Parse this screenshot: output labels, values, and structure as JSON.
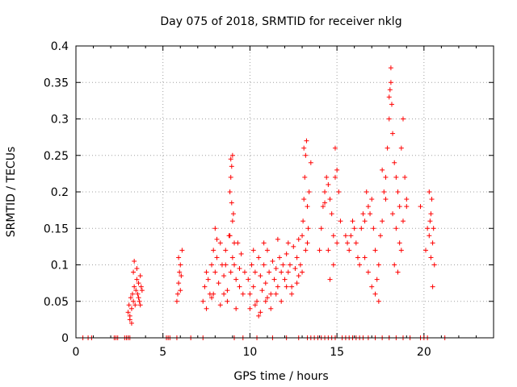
{
  "chart_data": {
    "type": "scatter",
    "title": "Day 075 of 2018, SRMTID for receiver nklg",
    "xlabel": "GPS time / hours",
    "ylabel": "SRMTID / TECUs",
    "xlim": [
      0,
      24
    ],
    "ylim": [
      0,
      0.4
    ],
    "x_ticks": [
      0,
      5,
      10,
      15,
      20
    ],
    "x_tick_labels": [
      "0",
      "5",
      "10",
      "15",
      "20"
    ],
    "y_ticks": [
      0,
      0.05,
      0.1,
      0.15,
      0.2,
      0.25,
      0.3,
      0.35,
      0.4
    ],
    "y_tick_labels": [
      "0",
      "0.05",
      "0.1",
      "0.15",
      "0.2",
      "0.25",
      "0.3",
      "0.35",
      "0.4"
    ],
    "grid": true,
    "marker": "+",
    "color": "#ff0000",
    "series": [
      {
        "name": "SRMTID",
        "points": [
          [
            3.0,
            0.035
          ],
          [
            3.05,
            0.045
          ],
          [
            3.1,
            0.03
          ],
          [
            3.15,
            0.055
          ],
          [
            3.2,
            0.04
          ],
          [
            3.25,
            0.06
          ],
          [
            3.3,
            0.05
          ],
          [
            3.35,
            0.07
          ],
          [
            3.4,
            0.045
          ],
          [
            3.45,
            0.065
          ],
          [
            3.5,
            0.08
          ],
          [
            3.55,
            0.06
          ],
          [
            3.6,
            0.075
          ],
          [
            3.65,
            0.05
          ],
          [
            3.7,
            0.085
          ],
          [
            3.75,
            0.07
          ],
          [
            3.8,
            0.065
          ],
          [
            3.3,
            0.09
          ],
          [
            3.35,
            0.105
          ],
          [
            3.5,
            0.095
          ],
          [
            3.1,
            0.025
          ],
          [
            3.2,
            0.02
          ],
          [
            3.6,
            0.055
          ],
          [
            3.7,
            0.045
          ],
          [
            5.8,
            0.05
          ],
          [
            5.85,
            0.06
          ],
          [
            5.9,
            0.075
          ],
          [
            5.95,
            0.09
          ],
          [
            6.0,
            0.1
          ],
          [
            6.05,
            0.085
          ],
          [
            6.1,
            0.12
          ],
          [
            5.9,
            0.11
          ],
          [
            6.0,
            0.065
          ],
          [
            7.3,
            0.05
          ],
          [
            7.4,
            0.07
          ],
          [
            7.5,
            0.09
          ],
          [
            7.6,
            0.08
          ],
          [
            7.7,
            0.06
          ],
          [
            7.8,
            0.1
          ],
          [
            7.9,
            0.12
          ],
          [
            8.0,
            0.09
          ],
          [
            8.1,
            0.11
          ],
          [
            8.2,
            0.075
          ],
          [
            8.3,
            0.13
          ],
          [
            8.4,
            0.1
          ],
          [
            8.5,
            0.085
          ],
          [
            8.6,
            0.12
          ],
          [
            8.7,
            0.065
          ],
          [
            8.8,
            0.14
          ],
          [
            8.9,
            0.09
          ],
          [
            9.0,
            0.11
          ],
          [
            9.1,
            0.1
          ],
          [
            9.2,
            0.08
          ],
          [
            9.3,
            0.13
          ],
          [
            9.4,
            0.07
          ],
          [
            9.5,
            0.115
          ],
          [
            9.6,
            0.06
          ],
          [
            9.7,
            0.09
          ],
          [
            7.5,
            0.04
          ],
          [
            7.8,
            0.055
          ],
          [
            8.0,
            0.15
          ],
          [
            8.3,
            0.045
          ],
          [
            8.5,
            0.06
          ],
          [
            8.7,
            0.05
          ],
          [
            9.0,
            0.16
          ],
          [
            9.2,
            0.04
          ],
          [
            7.9,
            0.06
          ],
          [
            8.1,
            0.135
          ],
          [
            8.6,
            0.1
          ],
          [
            9.4,
            0.095
          ],
          [
            8.85,
            0.2
          ],
          [
            8.9,
            0.22
          ],
          [
            8.95,
            0.235
          ],
          [
            9.0,
            0.25
          ],
          [
            8.9,
            0.245
          ],
          [
            8.95,
            0.185
          ],
          [
            9.05,
            0.17
          ],
          [
            8.85,
            0.14
          ],
          [
            9.1,
            0.13
          ],
          [
            9.9,
            0.08
          ],
          [
            10.0,
            0.06
          ],
          [
            10.1,
            0.1
          ],
          [
            10.2,
            0.07
          ],
          [
            10.3,
            0.09
          ],
          [
            10.4,
            0.05
          ],
          [
            10.5,
            0.11
          ],
          [
            10.6,
            0.085
          ],
          [
            10.7,
            0.065
          ],
          [
            10.8,
            0.1
          ],
          [
            10.9,
            0.075
          ],
          [
            11.0,
            0.12
          ],
          [
            11.1,
            0.09
          ],
          [
            11.2,
            0.06
          ],
          [
            11.3,
            0.105
          ],
          [
            11.4,
            0.08
          ],
          [
            11.5,
            0.095
          ],
          [
            11.6,
            0.07
          ],
          [
            11.7,
            0.11
          ],
          [
            11.8,
            0.09
          ],
          [
            11.9,
            0.1
          ],
          [
            12.0,
            0.08
          ],
          [
            12.1,
            0.115
          ],
          [
            12.2,
            0.09
          ],
          [
            12.3,
            0.1
          ],
          [
            12.4,
            0.07
          ],
          [
            12.5,
            0.125
          ],
          [
            12.6,
            0.095
          ],
          [
            12.7,
            0.11
          ],
          [
            12.8,
            0.085
          ],
          [
            12.9,
            0.1
          ],
          [
            10.0,
            0.04
          ],
          [
            10.3,
            0.045
          ],
          [
            10.6,
            0.035
          ],
          [
            10.9,
            0.05
          ],
          [
            11.2,
            0.04
          ],
          [
            11.5,
            0.06
          ],
          [
            11.8,
            0.05
          ],
          [
            12.1,
            0.07
          ],
          [
            12.4,
            0.06
          ],
          [
            12.7,
            0.075
          ],
          [
            10.2,
            0.12
          ],
          [
            10.8,
            0.13
          ],
          [
            11.6,
            0.135
          ],
          [
            12.2,
            0.13
          ],
          [
            12.8,
            0.135
          ],
          [
            10.5,
            0.03
          ],
          [
            11.0,
            0.055
          ],
          [
            13.0,
            0.14
          ],
          [
            13.05,
            0.16
          ],
          [
            13.1,
            0.19
          ],
          [
            13.15,
            0.22
          ],
          [
            13.2,
            0.25
          ],
          [
            13.25,
            0.27
          ],
          [
            13.1,
            0.26
          ],
          [
            13.3,
            0.18
          ],
          [
            13.35,
            0.15
          ],
          [
            13.4,
            0.2
          ],
          [
            13.5,
            0.24
          ],
          [
            13.2,
            0.12
          ],
          [
            13.0,
            0.09
          ],
          [
            13.3,
            0.13
          ],
          [
            14.0,
            0.12
          ],
          [
            14.1,
            0.15
          ],
          [
            14.2,
            0.18
          ],
          [
            14.3,
            0.2
          ],
          [
            14.4,
            0.22
          ],
          [
            14.5,
            0.21
          ],
          [
            14.6,
            0.19
          ],
          [
            14.7,
            0.17
          ],
          [
            14.8,
            0.14
          ],
          [
            14.9,
            0.26
          ],
          [
            15.0,
            0.23
          ],
          [
            15.1,
            0.2
          ],
          [
            15.2,
            0.16
          ],
          [
            14.5,
            0.12
          ],
          [
            14.6,
            0.08
          ],
          [
            14.8,
            0.1
          ],
          [
            14.3,
            0.185
          ],
          [
            14.9,
            0.22
          ],
          [
            15.0,
            0.13
          ],
          [
            15.5,
            0.14
          ],
          [
            15.6,
            0.13
          ],
          [
            15.7,
            0.12
          ],
          [
            15.8,
            0.14
          ],
          [
            15.9,
            0.16
          ],
          [
            16.0,
            0.15
          ],
          [
            16.1,
            0.13
          ],
          [
            16.2,
            0.11
          ],
          [
            16.3,
            0.1
          ],
          [
            16.4,
            0.15
          ],
          [
            16.5,
            0.17
          ],
          [
            16.6,
            0.16
          ],
          [
            16.7,
            0.2
          ],
          [
            16.8,
            0.18
          ],
          [
            16.9,
            0.17
          ],
          [
            17.0,
            0.19
          ],
          [
            17.1,
            0.15
          ],
          [
            17.2,
            0.12
          ],
          [
            17.3,
            0.08
          ],
          [
            17.4,
            0.05
          ],
          [
            17.5,
            0.14
          ],
          [
            17.6,
            0.16
          ],
          [
            17.7,
            0.2
          ],
          [
            17.8,
            0.22
          ],
          [
            17.9,
            0.26
          ],
          [
            18.0,
            0.3
          ],
          [
            18.05,
            0.34
          ],
          [
            18.1,
            0.37
          ],
          [
            18.15,
            0.32
          ],
          [
            18.2,
            0.28
          ],
          [
            18.3,
            0.24
          ],
          [
            18.4,
            0.22
          ],
          [
            18.5,
            0.2
          ],
          [
            18.6,
            0.18
          ],
          [
            18.7,
            0.26
          ],
          [
            18.8,
            0.3
          ],
          [
            18.9,
            0.22
          ],
          [
            19.0,
            0.19
          ],
          [
            18.2,
            0.17
          ],
          [
            18.4,
            0.15
          ],
          [
            18.6,
            0.13
          ],
          [
            18.8,
            0.16
          ],
          [
            18.1,
            0.35
          ],
          [
            18.0,
            0.33
          ],
          [
            18.3,
            0.1
          ],
          [
            18.5,
            0.09
          ],
          [
            17.8,
            0.19
          ],
          [
            17.6,
            0.23
          ],
          [
            18.7,
            0.12
          ],
          [
            19.0,
            0.18
          ],
          [
            16.8,
            0.09
          ],
          [
            17.0,
            0.07
          ],
          [
            17.2,
            0.06
          ],
          [
            16.6,
            0.11
          ],
          [
            17.4,
            0.1
          ],
          [
            19.8,
            0.18
          ],
          [
            20.1,
            0.12
          ],
          [
            20.2,
            0.15
          ],
          [
            20.3,
            0.14
          ],
          [
            20.35,
            0.16
          ],
          [
            20.4,
            0.17
          ],
          [
            20.45,
            0.19
          ],
          [
            20.5,
            0.13
          ],
          [
            20.55,
            0.15
          ],
          [
            20.6,
            0.1
          ],
          [
            20.5,
            0.07
          ],
          [
            20.3,
            0.2
          ],
          [
            20.4,
            0.11
          ]
        ]
      }
    ],
    "zero_band_x": [
      0.4,
      0.7,
      0.9,
      2.2,
      2.3,
      2.4,
      2.8,
      2.9,
      3.0,
      3.1,
      5.2,
      5.3,
      5.4,
      5.8,
      6.6,
      7.3,
      9.1,
      9.6,
      10.4,
      11.3,
      12.1,
      12.8,
      13.3,
      13.5,
      13.7,
      13.9,
      14.1,
      14.3,
      14.5,
      14.7,
      14.9,
      15.3,
      15.5,
      15.7,
      15.9,
      16.1,
      16.3,
      16.5,
      16.8,
      17.2,
      17.6,
      18.0,
      18.4,
      18.8,
      19.2,
      19.8,
      20.0,
      20.2,
      21.2
    ]
  }
}
